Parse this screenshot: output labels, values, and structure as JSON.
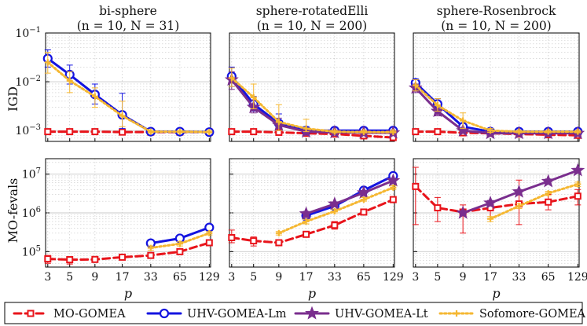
{
  "colors": {
    "mo": "#e8141b",
    "lm": "#1414e0",
    "lt": "#7a2e8e",
    "so": "#f5b731",
    "grid": "#c8c8c8",
    "axis": "#000000"
  },
  "figure": {
    "ylabel_top": "IGD",
    "ylabel_bottom": "MO-fevals",
    "xlabel": "p",
    "xticks": [
      "3",
      "5",
      "9",
      "17",
      "33",
      "65",
      "129"
    ],
    "yticks_top": [
      {
        "v": 0.1,
        "base": "10",
        "exp": "−1"
      },
      {
        "v": 0.01,
        "base": "10",
        "exp": "−2"
      },
      {
        "v": 0.001,
        "base": "10",
        "exp": "−3"
      }
    ],
    "yticks_bottom": [
      {
        "v": 10000000,
        "base": "10",
        "exp": "7"
      },
      {
        "v": 1000000,
        "base": "10",
        "exp": "6"
      },
      {
        "v": 100000,
        "base": "10",
        "exp": "5"
      }
    ]
  },
  "legend": [
    {
      "key": "mo",
      "label": "MO-GOMEA"
    },
    {
      "key": "lm",
      "label": "UHV-GOMEA-Lm"
    },
    {
      "key": "lt",
      "label": "UHV-GOMEA-Lt"
    },
    {
      "key": "so",
      "label": "Sofomore-GOMEA"
    }
  ],
  "chart_data": [
    {
      "type": "line",
      "title": "bi-sphere",
      "subtitle": "(n = 10, N = 31)",
      "xscale": "log2",
      "x": [
        3,
        5,
        9,
        17,
        33,
        65,
        129
      ],
      "top": {
        "ylabel": "IGD",
        "yscale": "log",
        "ylim": [
          0.0006,
          0.1
        ],
        "series": [
          {
            "key": "mo",
            "values": [
              0.00095,
              0.00095,
              0.00095,
              0.00093,
              0.00093,
              0.00093,
              0.00093
            ],
            "err_lo": [
              0,
              0,
              0,
              0,
              0,
              0,
              0
            ],
            "err_hi": [
              0,
              0,
              0,
              0,
              0,
              0,
              0
            ]
          },
          {
            "key": "lm",
            "values": [
              0.03,
              0.014,
              0.0055,
              0.0021,
              0.00095,
              0.00095,
              0.00093
            ],
            "err_lo": [
              0.02,
              0.009,
              0.0035,
              0.0011,
              0.0009,
              0.0009,
              0.0009
            ],
            "err_hi": [
              0.045,
              0.022,
              0.009,
              0.0058,
              0.001,
              0.001,
              0.001
            ]
          },
          {
            "key": "so",
            "values": [
              0.025,
              0.0105,
              0.005,
              0.002,
              0.00095,
              0.00095,
              0.00093
            ],
            "err_lo": [
              0.015,
              0.006,
              0.003,
              0.0012,
              0.0009,
              0.0009,
              0.0009
            ],
            "err_hi": [
              0.04,
              0.016,
              0.0075,
              0.004,
              0.001,
              0.001,
              0.001
            ]
          }
        ]
      },
      "bottom": {
        "ylabel": "MO-fevals",
        "yscale": "log",
        "ylim": [
          40000,
          25000000
        ],
        "series": [
          {
            "key": "mo",
            "values": [
              65000,
              62000,
              63000,
              72000,
              80000,
              100000,
              170000
            ],
            "err_lo": [
              50000,
              48000,
              56000,
              65000,
              70000,
              90000,
              150000
            ],
            "err_hi": [
              80000,
              75000,
              70000,
              80000,
              90000,
              112000,
              185000
            ]
          },
          {
            "key": "lm",
            "values": [
              null,
              null,
              null,
              null,
              165000,
              220000,
              420000
            ],
            "err_lo": [
              null,
              null,
              null,
              null,
              140000,
              200000,
              390000
            ],
            "err_hi": [
              null,
              null,
              null,
              null,
              185000,
              240000,
              450000
            ]
          },
          {
            "key": "so",
            "values": [
              null,
              null,
              null,
              null,
              125000,
              160000,
              300000
            ],
            "err_lo": [
              null,
              null,
              null,
              null,
              110000,
              140000,
              270000
            ],
            "err_hi": [
              null,
              null,
              null,
              null,
              140000,
              180000,
              330000
            ]
          }
        ]
      }
    },
    {
      "type": "line",
      "title": "sphere-rotatedElli",
      "subtitle": "(n = 10, N = 200)",
      "xscale": "log2",
      "x": [
        3,
        5,
        9,
        17,
        33,
        65,
        129
      ],
      "top": {
        "ylabel": "IGD",
        "yscale": "log",
        "ylim": [
          0.0006,
          0.1
        ],
        "series": [
          {
            "key": "mo",
            "values": [
              0.00095,
              0.00095,
              0.00092,
              0.00088,
              0.00085,
              0.00078,
              0.00072
            ],
            "err_lo": [
              0,
              0,
              0,
              0,
              0,
              0,
              0
            ],
            "err_hi": [
              0,
              0,
              0,
              0,
              0,
              0,
              0
            ]
          },
          {
            "key": "lm",
            "values": [
              0.013,
              0.0035,
              0.0014,
              0.001,
              0.001,
              0.001,
              0.001
            ],
            "err_lo": [
              0.008,
              0.0025,
              0.0011,
              0.00095,
              0.00095,
              0.00095,
              0.00095
            ],
            "err_hi": [
              0.02,
              0.005,
              0.0022,
              0.0012,
              0.0011,
              0.0011,
              0.0011
            ]
          },
          {
            "key": "lt",
            "values": [
              0.011,
              0.003,
              0.0013,
              0.00095,
              0.00092,
              0.0009,
              0.0009
            ],
            "err_lo": [
              0.007,
              0.0023,
              0.001,
              0.0009,
              0.00088,
              0.00087,
              0.00087
            ],
            "err_hi": [
              0.016,
              0.0042,
              0.0018,
              0.001,
              0.00097,
              0.00095,
              0.00095
            ]
          },
          {
            "key": "so",
            "values": [
              0.012,
              0.0048,
              0.0015,
              0.0011,
              0.00095,
              0.00093,
              0.00093
            ],
            "err_lo": [
              0.008,
              0.0028,
              0.001,
              0.00095,
              0.0009,
              0.0009,
              0.0009
            ],
            "err_hi": [
              0.019,
              0.009,
              0.0034,
              0.0017,
              0.001,
              0.001,
              0.001
            ]
          }
        ]
      },
      "bottom": {
        "ylabel": "MO-fevals",
        "yscale": "log",
        "ylim": [
          40000,
          25000000
        ],
        "series": [
          {
            "key": "mo",
            "values": [
              230000,
              190000,
              170000,
              280000,
              480000,
              1050000,
              2200000
            ],
            "err_lo": [
              170000,
              140000,
              150000,
              240000,
              380000,
              900000,
              1900000
            ],
            "err_hi": [
              360000,
              240000,
              200000,
              320000,
              600000,
              1200000,
              2600000
            ]
          },
          {
            "key": "lm",
            "values": [
              null,
              null,
              null,
              850000,
              1500000,
              3800000,
              9000000
            ],
            "err_lo": [
              null,
              null,
              null,
              650000,
              1300000,
              3000000,
              7500000
            ],
            "err_hi": [
              null,
              null,
              null,
              1000000,
              1800000,
              4600000,
              10500000
            ]
          },
          {
            "key": "lt",
            "values": [
              null,
              null,
              null,
              950000,
              1700000,
              3300000,
              6800000
            ],
            "err_lo": [
              null,
              null,
              null,
              750000,
              1500000,
              2800000,
              5800000
            ],
            "err_hi": [
              null,
              null,
              null,
              1100000,
              1900000,
              3800000,
              7800000
            ]
          },
          {
            "key": "so",
            "values": [
              null,
              null,
              300000,
              600000,
              1100000,
              2200000,
              4500000
            ],
            "err_lo": [
              null,
              null,
              270000,
              520000,
              1000000,
              2000000,
              4000000
            ],
            "err_hi": [
              null,
              null,
              330000,
              680000,
              1250000,
              2500000,
              5000000
            ]
          }
        ]
      }
    },
    {
      "type": "line",
      "title": "sphere-Rosenbrock",
      "subtitle": "(n = 10, N = 200)",
      "xscale": "log2",
      "x": [
        3,
        5,
        9,
        17,
        33,
        65,
        129
      ],
      "top": {
        "ylabel": "IGD",
        "yscale": "log",
        "ylim": [
          0.0006,
          0.1
        ],
        "series": [
          {
            "key": "mo",
            "values": [
              0.00095,
              0.00095,
              0.0009,
              0.00088,
              0.00085,
              0.00082,
              0.0008
            ],
            "err_lo": [
              0,
              0,
              0,
              0,
              0,
              0,
              0
            ],
            "err_hi": [
              0,
              0,
              0,
              0,
              0,
              0,
              0
            ]
          },
          {
            "key": "lm",
            "values": [
              0.0095,
              0.0035,
              0.0012,
              0.00095,
              0.00095,
              0.00095,
              0.00095
            ],
            "err_lo": [
              0.0075,
              0.0027,
              0.001,
              0.0009,
              0.0009,
              0.0009,
              0.0009
            ],
            "err_hi": [
              0.0115,
              0.0045,
              0.0014,
              0.001,
              0.001,
              0.001,
              0.001
            ]
          },
          {
            "key": "lt",
            "values": [
              0.0075,
              0.0025,
              0.001,
              0.00088,
              0.00088,
              0.00088,
              0.00088
            ],
            "err_lo": [
              0.006,
              0.002,
              0.0009,
              0.00085,
              0.00085,
              0.00085,
              0.00085
            ],
            "err_hi": [
              0.009,
              0.0032,
              0.0011,
              0.00092,
              0.00092,
              0.00092,
              0.00092
            ]
          },
          {
            "key": "so",
            "values": [
              0.0085,
              0.0033,
              0.0016,
              0.001,
              0.00095,
              0.00095,
              0.00095
            ],
            "err_lo": [
              0.0065,
              0.0025,
              0.0011,
              0.00092,
              0.0009,
              0.0009,
              0.0009
            ],
            "err_hi": [
              0.011,
              0.0045,
              0.0023,
              0.0011,
              0.001,
              0.001,
              0.001
            ]
          }
        ]
      },
      "bottom": {
        "ylabel": "MO-fevals",
        "yscale": "log",
        "ylim": [
          40000,
          25000000
        ],
        "series": [
          {
            "key": "mo",
            "values": [
              4800000,
              1350000,
              1050000,
              1350000,
              1700000,
              1900000,
              2700000
            ],
            "err_lo": [
              500000,
              600000,
              300000,
              600000,
              500000,
              1200000,
              1600000
            ],
            "err_hi": [
              15000000,
              2500000,
              1600000,
              2000000,
              7000000,
              3000000,
              4000000
            ]
          },
          {
            "key": "lt",
            "values": [
              null,
              null,
              1000000,
              1800000,
              3500000,
              6500000,
              12500000
            ],
            "err_lo": [
              null,
              null,
              850000,
              1500000,
              3000000,
              5500000,
              11000000
            ],
            "err_hi": [
              null,
              null,
              1150000,
              2100000,
              4000000,
              7500000,
              14000000
            ]
          },
          {
            "key": "so",
            "values": [
              null,
              null,
              null,
              700000,
              1500000,
              3200000,
              5500000
            ],
            "err_lo": [
              null,
              null,
              null,
              600000,
              1300000,
              2800000,
              4800000
            ],
            "err_hi": [
              null,
              null,
              null,
              800000,
              1700000,
              3600000,
              6200000
            ]
          }
        ]
      }
    }
  ]
}
